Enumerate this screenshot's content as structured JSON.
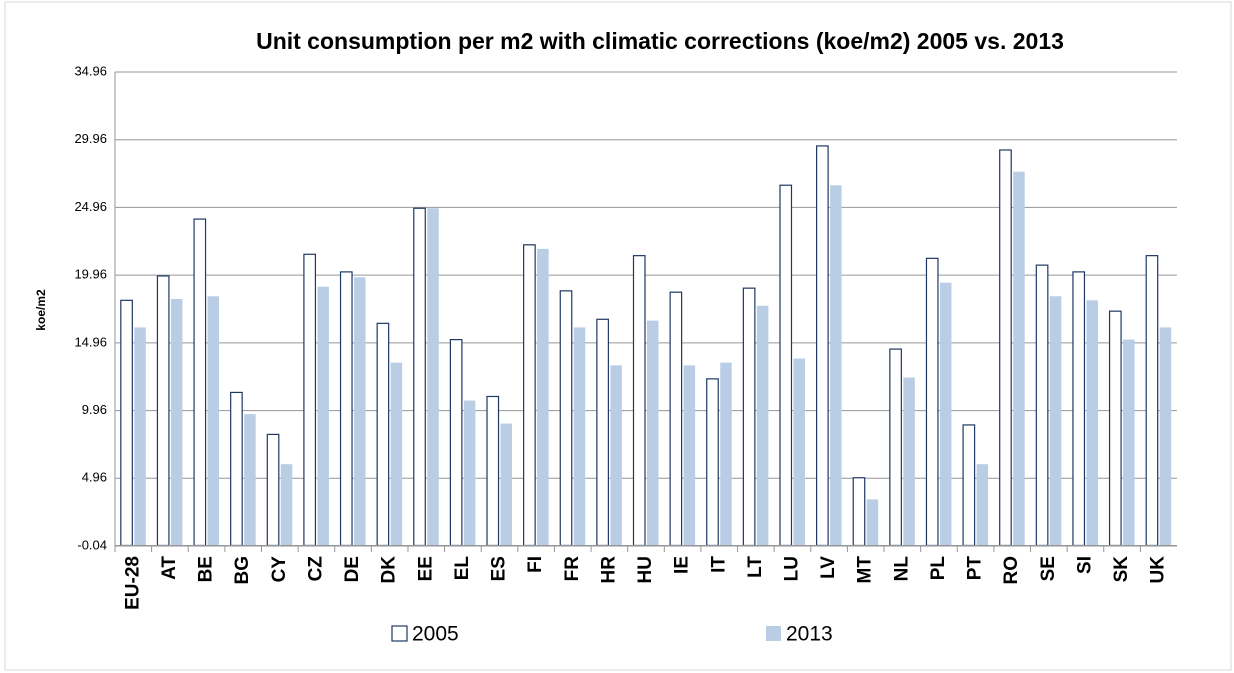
{
  "chart_data": {
    "type": "bar",
    "title": "Unit consumption per m2 with climatic corrections (koe/m2) 2005 vs. 2013",
    "y_label": "koe/m2",
    "categories": [
      "EU-28",
      "AT",
      "BE",
      "BG",
      "CY",
      "CZ",
      "DE",
      "DK",
      "EE",
      "EL",
      "ES",
      "FI",
      "FR",
      "HR",
      "HU",
      "IE",
      "IT",
      "LT",
      "LU",
      "LV",
      "MT",
      "NL",
      "PL",
      "PT",
      "RO",
      "SE",
      "SI",
      "SK",
      "UK"
    ],
    "series": [
      {
        "name": "2005",
        "color": "#ffffff",
        "stroke": "#1f3864",
        "values": [
          18.1,
          19.9,
          24.1,
          11.3,
          8.2,
          21.5,
          20.2,
          16.4,
          24.9,
          15.2,
          11.0,
          22.2,
          18.8,
          16.7,
          21.4,
          18.7,
          12.3,
          19.0,
          26.6,
          29.5,
          5.0,
          14.5,
          21.2,
          8.9,
          29.2,
          20.7,
          20.2,
          17.3,
          21.4
        ]
      },
      {
        "name": "2013",
        "color": "#b9cde5",
        "values": [
          16.1,
          18.2,
          18.4,
          9.7,
          6.0,
          19.1,
          19.8,
          13.5,
          24.9,
          10.7,
          9.0,
          21.9,
          16.1,
          13.3,
          16.6,
          13.3,
          13.5,
          17.7,
          13.8,
          26.6,
          3.4,
          12.4,
          19.4,
          6.0,
          27.6,
          18.4,
          18.1,
          15.2,
          16.1
        ]
      }
    ],
    "ylim": [
      -0.04,
      34.96
    ],
    "yticks": [
      -0.04,
      4.96,
      9.96,
      14.96,
      19.96,
      24.96,
      29.96,
      34.96
    ],
    "grid": true
  }
}
